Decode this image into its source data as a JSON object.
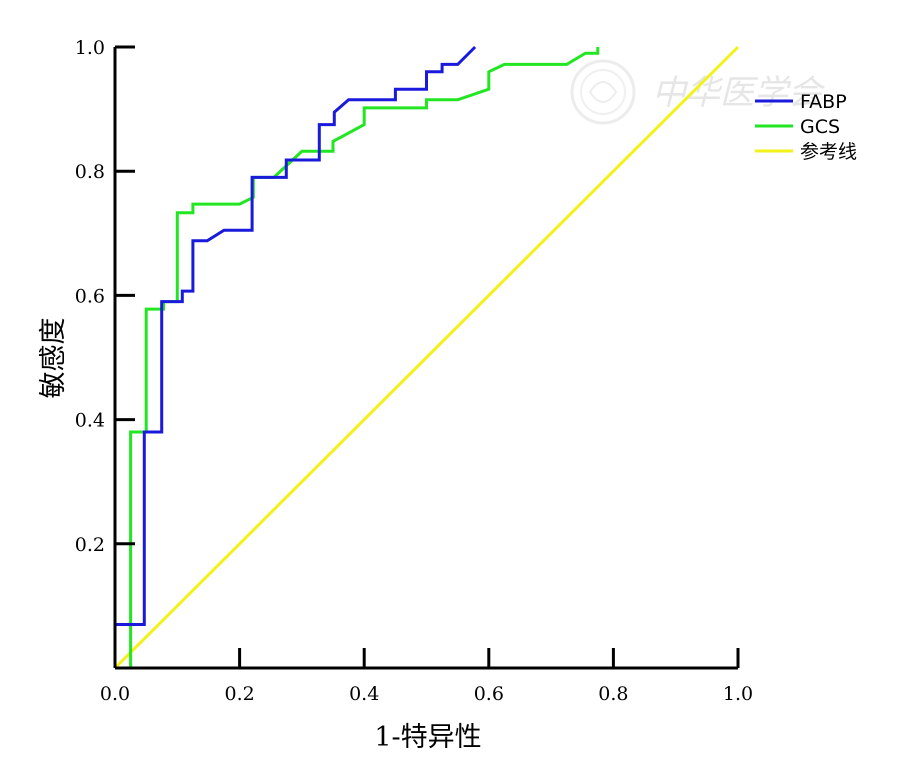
{
  "chart_data": {
    "type": "line",
    "xlabel": "1-特异性",
    "ylabel": "敏感度",
    "xlim": [
      0,
      1
    ],
    "ylim": [
      0,
      1
    ],
    "x_ticks": [
      "0.0",
      "0.2",
      "0.4",
      "0.6",
      "0.8",
      "1.0"
    ],
    "y_ticks": [
      "0.2",
      "0.4",
      "0.6",
      "0.8",
      "1.0"
    ],
    "x_tick_values": [
      0,
      0.2,
      0.4,
      0.6,
      0.8,
      1.0
    ],
    "y_tick_values": [
      0.2,
      0.4,
      0.6,
      0.8,
      1.0
    ],
    "grid": false,
    "legend": "right",
    "watermark": "中华医学会",
    "series": [
      {
        "name": "FABP",
        "color": "#1a1adc",
        "points": [
          [
            0.0,
            0.07
          ],
          [
            0.047,
            0.07
          ],
          [
            0.047,
            0.38
          ],
          [
            0.075,
            0.38
          ],
          [
            0.075,
            0.59
          ],
          [
            0.108,
            0.59
          ],
          [
            0.108,
            0.607
          ],
          [
            0.125,
            0.607
          ],
          [
            0.125,
            0.688
          ],
          [
            0.148,
            0.688
          ],
          [
            0.175,
            0.705
          ],
          [
            0.22,
            0.705
          ],
          [
            0.22,
            0.79
          ],
          [
            0.275,
            0.79
          ],
          [
            0.275,
            0.818
          ],
          [
            0.328,
            0.818
          ],
          [
            0.328,
            0.875
          ],
          [
            0.352,
            0.875
          ],
          [
            0.352,
            0.895
          ],
          [
            0.375,
            0.915
          ],
          [
            0.45,
            0.915
          ],
          [
            0.45,
            0.932
          ],
          [
            0.5,
            0.932
          ],
          [
            0.5,
            0.96
          ],
          [
            0.525,
            0.96
          ],
          [
            0.525,
            0.972
          ],
          [
            0.55,
            0.972
          ],
          [
            0.578,
            1.0
          ]
        ]
      },
      {
        "name": "GCS",
        "color": "#22e622",
        "points": [
          [
            0.025,
            0.0
          ],
          [
            0.025,
            0.38
          ],
          [
            0.05,
            0.38
          ],
          [
            0.05,
            0.578
          ],
          [
            0.078,
            0.578
          ],
          [
            0.078,
            0.59
          ],
          [
            0.1,
            0.59
          ],
          [
            0.1,
            0.733
          ],
          [
            0.125,
            0.733
          ],
          [
            0.125,
            0.747
          ],
          [
            0.2,
            0.747
          ],
          [
            0.222,
            0.758
          ],
          [
            0.222,
            0.79
          ],
          [
            0.255,
            0.79
          ],
          [
            0.3,
            0.832
          ],
          [
            0.35,
            0.832
          ],
          [
            0.35,
            0.848
          ],
          [
            0.4,
            0.875
          ],
          [
            0.4,
            0.902
          ],
          [
            0.5,
            0.902
          ],
          [
            0.5,
            0.915
          ],
          [
            0.55,
            0.915
          ],
          [
            0.6,
            0.932
          ],
          [
            0.6,
            0.96
          ],
          [
            0.625,
            0.972
          ],
          [
            0.725,
            0.972
          ],
          [
            0.755,
            0.99
          ],
          [
            0.775,
            0.99
          ],
          [
            0.775,
            1.0
          ]
        ]
      },
      {
        "name": "参考线",
        "color": "#f2f21a",
        "points": [
          [
            0.0,
            0.0
          ],
          [
            1.0,
            1.0
          ]
        ]
      }
    ]
  }
}
